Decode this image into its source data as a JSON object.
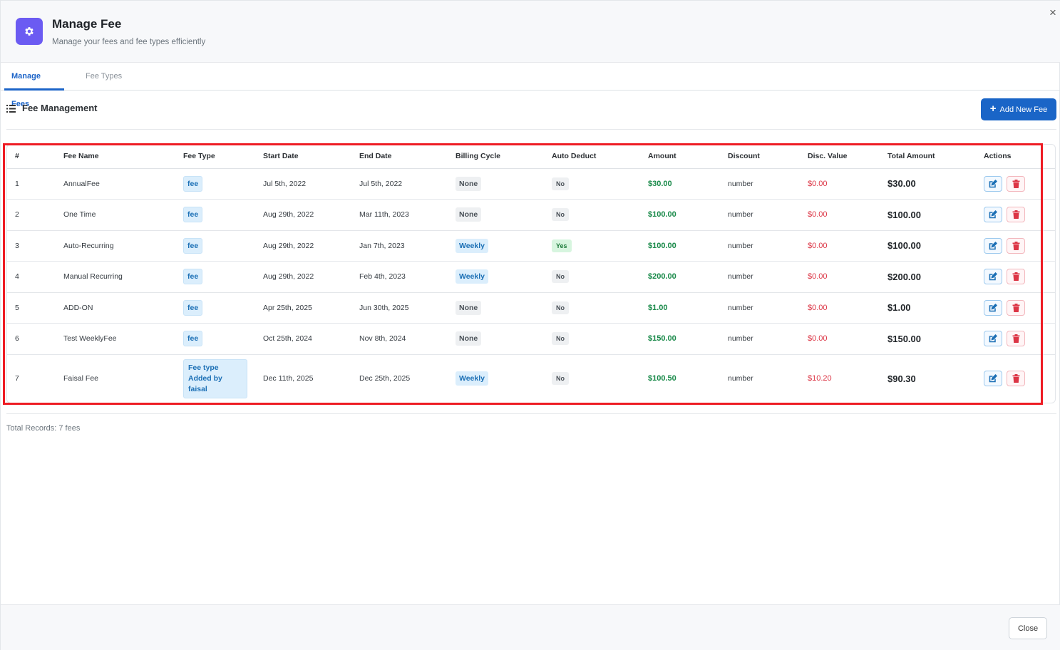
{
  "header": {
    "title": "Manage Fee",
    "subtitle": "Manage your fees and fee types efficiently",
    "icon": "gear-icon",
    "icon_color": "#6b5bf2"
  },
  "tabs": [
    {
      "label": "Manage Fees",
      "active": true
    },
    {
      "label": "Fee Types",
      "active": false
    }
  ],
  "section": {
    "title": "Fee Management",
    "add_label": "Add New Fee"
  },
  "table": {
    "columns": [
      "#",
      "Fee Name",
      "Fee Type",
      "Start Date",
      "End Date",
      "Billing Cycle",
      "Auto Deduct",
      "Amount",
      "Discount",
      "Disc. Value",
      "Total Amount",
      "Actions"
    ],
    "rows": [
      {
        "num": "1",
        "name": "AnnualFee",
        "type": "fee",
        "start": "Jul 5th, 2022",
        "end": "Jul 5th, 2022",
        "cycle": "None",
        "auto": "No",
        "amount": "$30.00",
        "discount": "number",
        "disc_value": "$0.00",
        "total": "$30.00"
      },
      {
        "num": "2",
        "name": "One Time",
        "type": "fee",
        "start": "Aug 29th, 2022",
        "end": "Mar 11th, 2023",
        "cycle": "None",
        "auto": "No",
        "amount": "$100.00",
        "discount": "number",
        "disc_value": "$0.00",
        "total": "$100.00"
      },
      {
        "num": "3",
        "name": "Auto-Recurring",
        "type": "fee",
        "start": "Aug 29th, 2022",
        "end": "Jan 7th, 2023",
        "cycle": "Weekly",
        "auto": "Yes",
        "amount": "$100.00",
        "discount": "number",
        "disc_value": "$0.00",
        "total": "$100.00"
      },
      {
        "num": "4",
        "name": "Manual Recurring",
        "type": "fee",
        "start": "Aug 29th, 2022",
        "end": "Feb 4th, 2023",
        "cycle": "Weekly",
        "auto": "No",
        "amount": "$200.00",
        "discount": "number",
        "disc_value": "$0.00",
        "total": "$200.00"
      },
      {
        "num": "5",
        "name": "ADD-ON",
        "type": "fee",
        "start": "Apr 25th, 2025",
        "end": "Jun 30th, 2025",
        "cycle": "None",
        "auto": "No",
        "amount": "$1.00",
        "discount": "number",
        "disc_value": "$0.00",
        "total": "$1.00"
      },
      {
        "num": "6",
        "name": "Test WeeklyFee",
        "type": "fee",
        "start": "Oct 25th, 2024",
        "end": "Nov 8th, 2024",
        "cycle": "None",
        "auto": "No",
        "amount": "$150.00",
        "discount": "number",
        "disc_value": "$0.00",
        "total": "$150.00"
      },
      {
        "num": "7",
        "name": "Faisal Fee",
        "type": "Fee type Added by faisal",
        "start": "Dec 11th, 2025",
        "end": "Dec 25th, 2025",
        "cycle": "Weekly",
        "auto": "No",
        "amount": "$100.50",
        "discount": "number",
        "disc_value": "$10.20",
        "total": "$90.30"
      }
    ]
  },
  "footer": {
    "total_records": "Total Records: 7 fees",
    "close_label": "Close"
  },
  "colors": {
    "primary": "#1a65c7",
    "amount_green": "#1a8a4a",
    "discount_red": "#dc3545",
    "highlight_red": "#ee1c24"
  }
}
